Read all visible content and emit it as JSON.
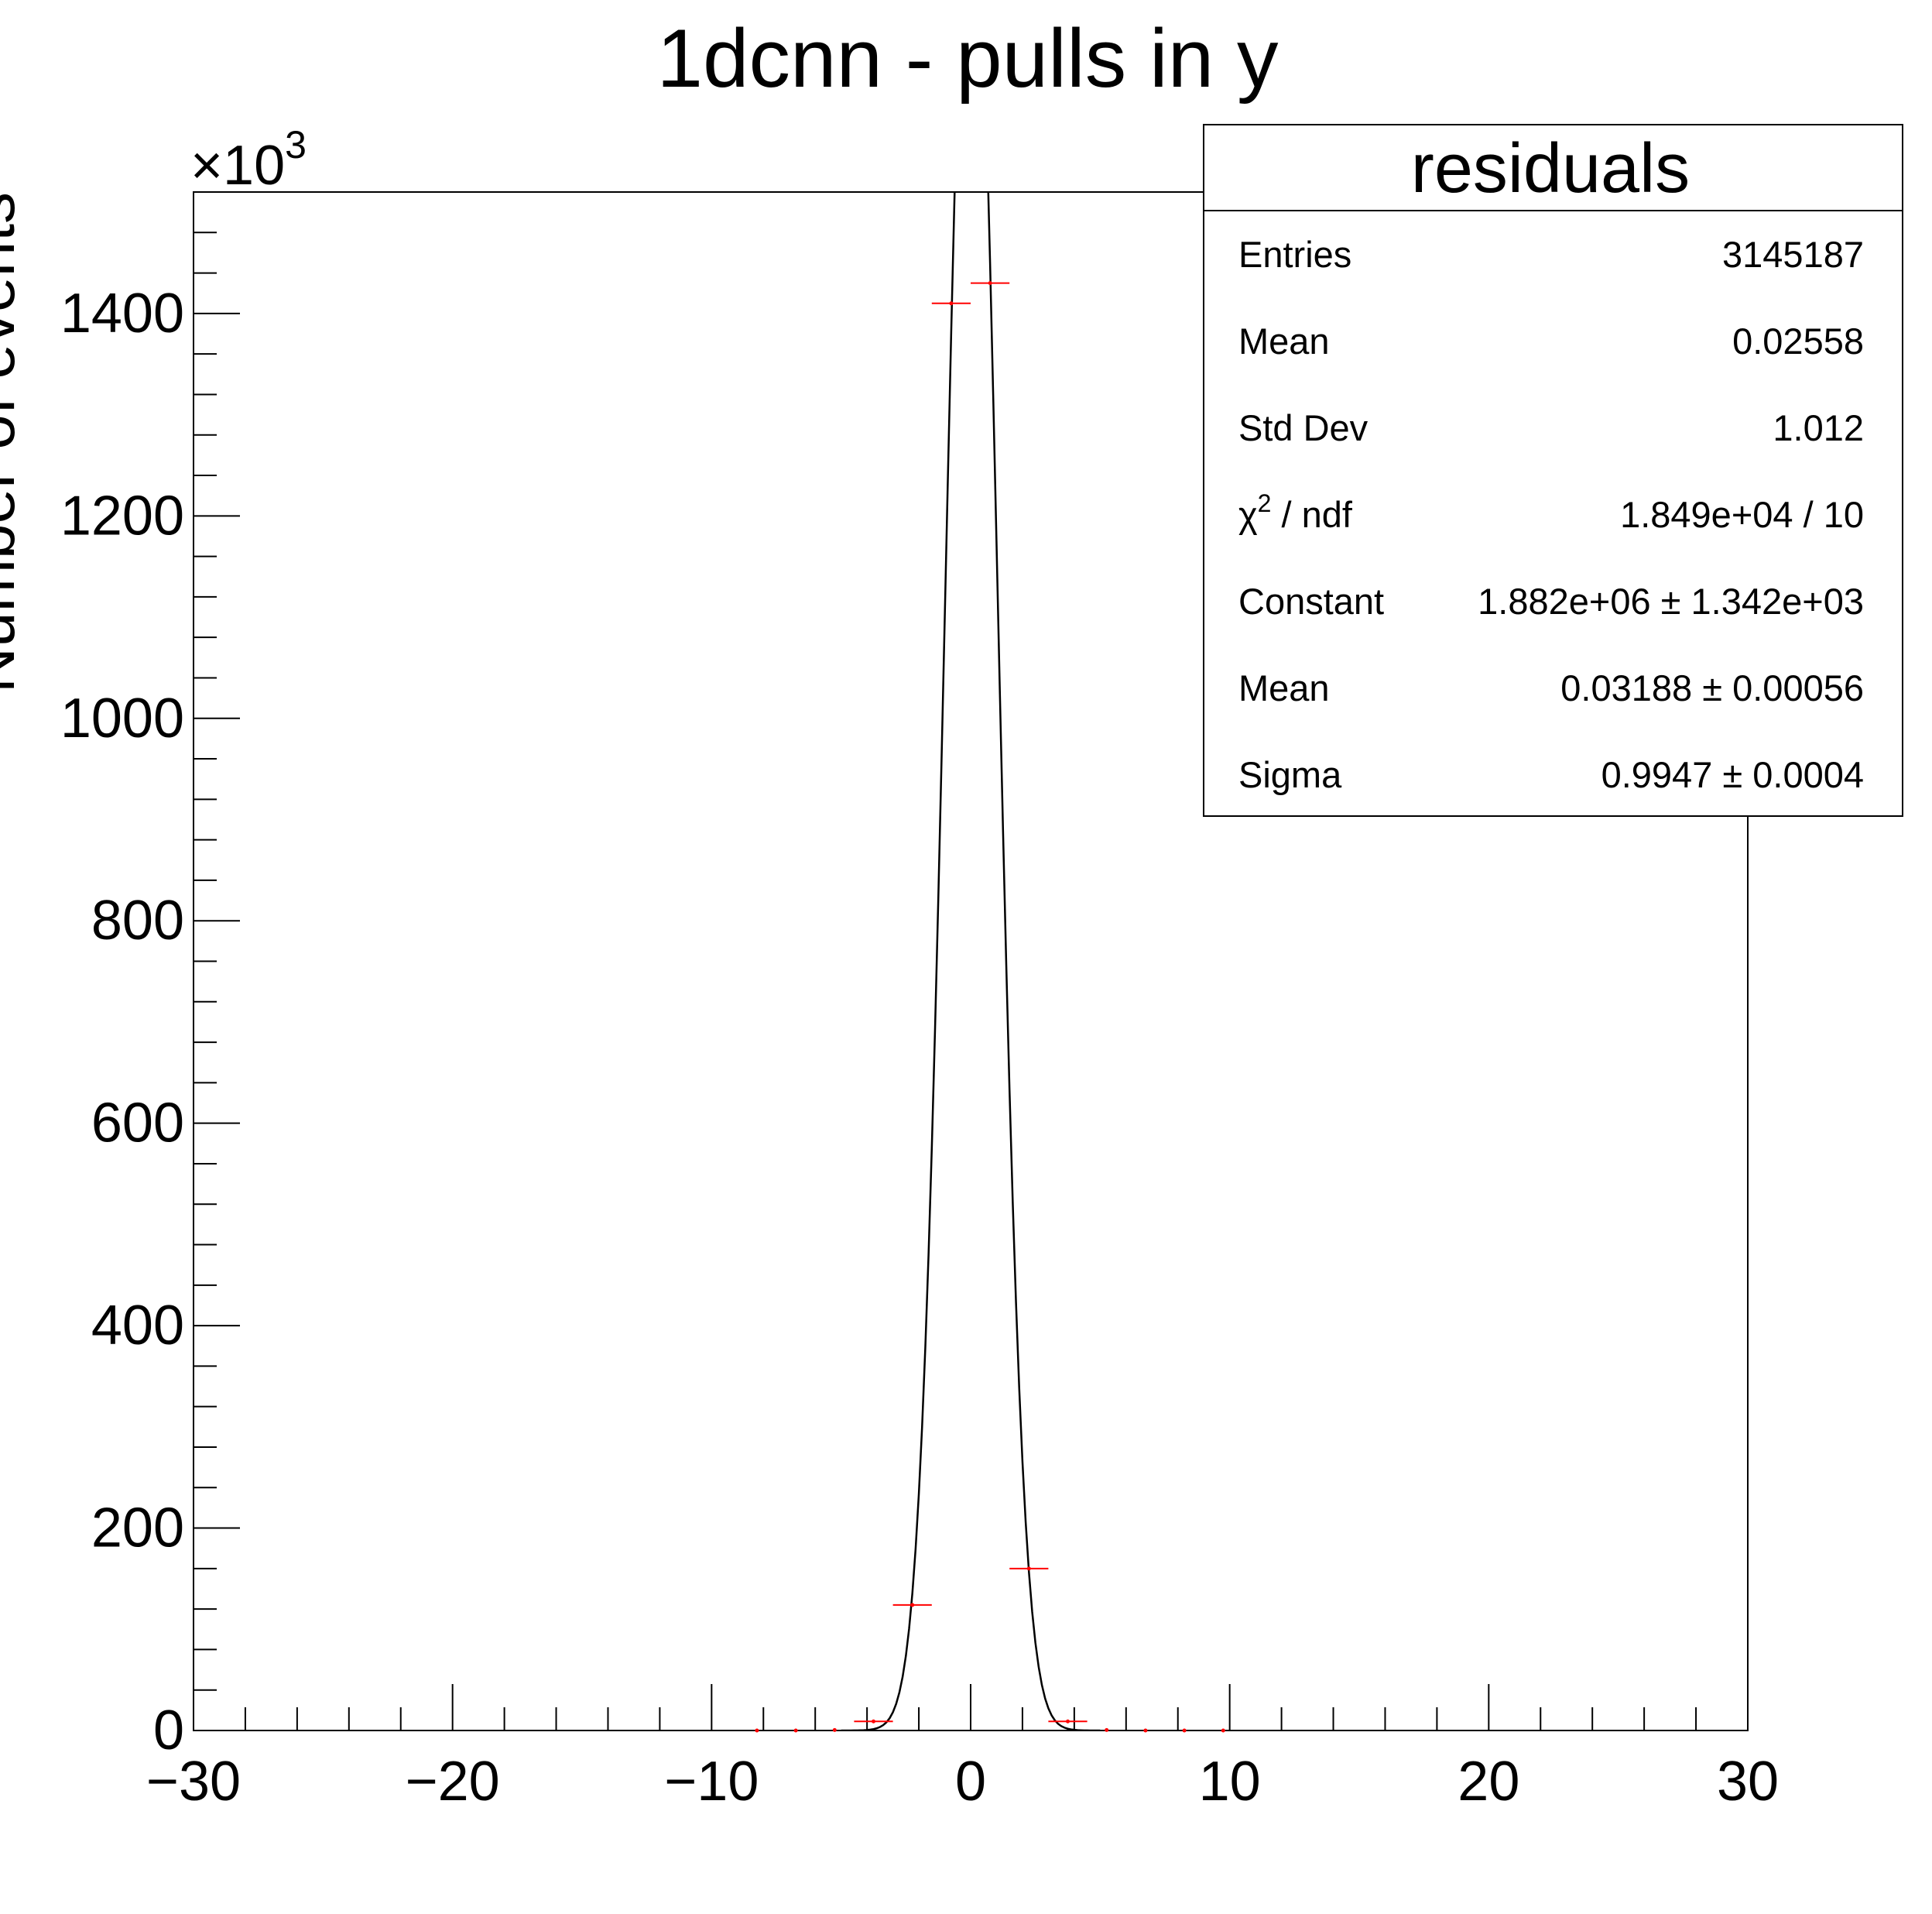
{
  "chart_data": {
    "type": "histogram",
    "title": "1dcnn - pulls in y",
    "ylabel": "Number of events",
    "xlabel": "",
    "y_multiplier_label": "×10",
    "y_multiplier_exponent": "3",
    "xlim": [
      -30,
      30
    ],
    "ylim": [
      0,
      1520
    ],
    "x_ticks": [
      -30,
      -20,
      -10,
      0,
      10,
      20,
      30
    ],
    "x_tick_labels": [
      "−30",
      "−20",
      "−10",
      "0",
      "10",
      "20",
      "30"
    ],
    "y_ticks": [
      0,
      200,
      400,
      600,
      800,
      1000,
      1200,
      1400
    ],
    "y_tick_labels": [
      "0",
      "200",
      "400",
      "600",
      "800",
      "1000",
      "1200",
      "1400"
    ],
    "bin_width": 1.5,
    "series": [
      {
        "kind": "histogram_points",
        "color": "#ff0000",
        "x": [
          -8.25,
          -6.75,
          -5.25,
          -3.75,
          -2.25,
          -0.75,
          0.75,
          2.25,
          3.75,
          5.25,
          6.75,
          8.25,
          9.75
        ],
        "y": [
          0,
          0,
          0.5,
          9,
          124,
          1410,
          1430,
          160,
          9,
          0.5,
          0,
          0,
          0
        ]
      },
      {
        "kind": "gaussian_fit",
        "color": "#000000",
        "constant": 1882,
        "mean": 0.03188,
        "sigma": 0.9947,
        "range": [
          -5,
          5
        ]
      }
    ],
    "stats_box": {
      "title": "residuals",
      "rows": [
        {
          "label": "Entries",
          "value": "3145187"
        },
        {
          "label": "Mean",
          "value": "0.02558"
        },
        {
          "label": "Std Dev",
          "value": "1.012"
        },
        {
          "label": "χ",
          "label_sup": "2",
          "label_rest": " / ndf",
          "value": "1.849e+04 / 10"
        },
        {
          "label": "Constant",
          "value": "1.882e+06 ± 1.342e+03"
        },
        {
          "label": "Mean",
          "value": "0.03188 ± 0.00056"
        },
        {
          "label": "Sigma",
          "value": "0.9947 ± 0.0004"
        }
      ]
    }
  }
}
